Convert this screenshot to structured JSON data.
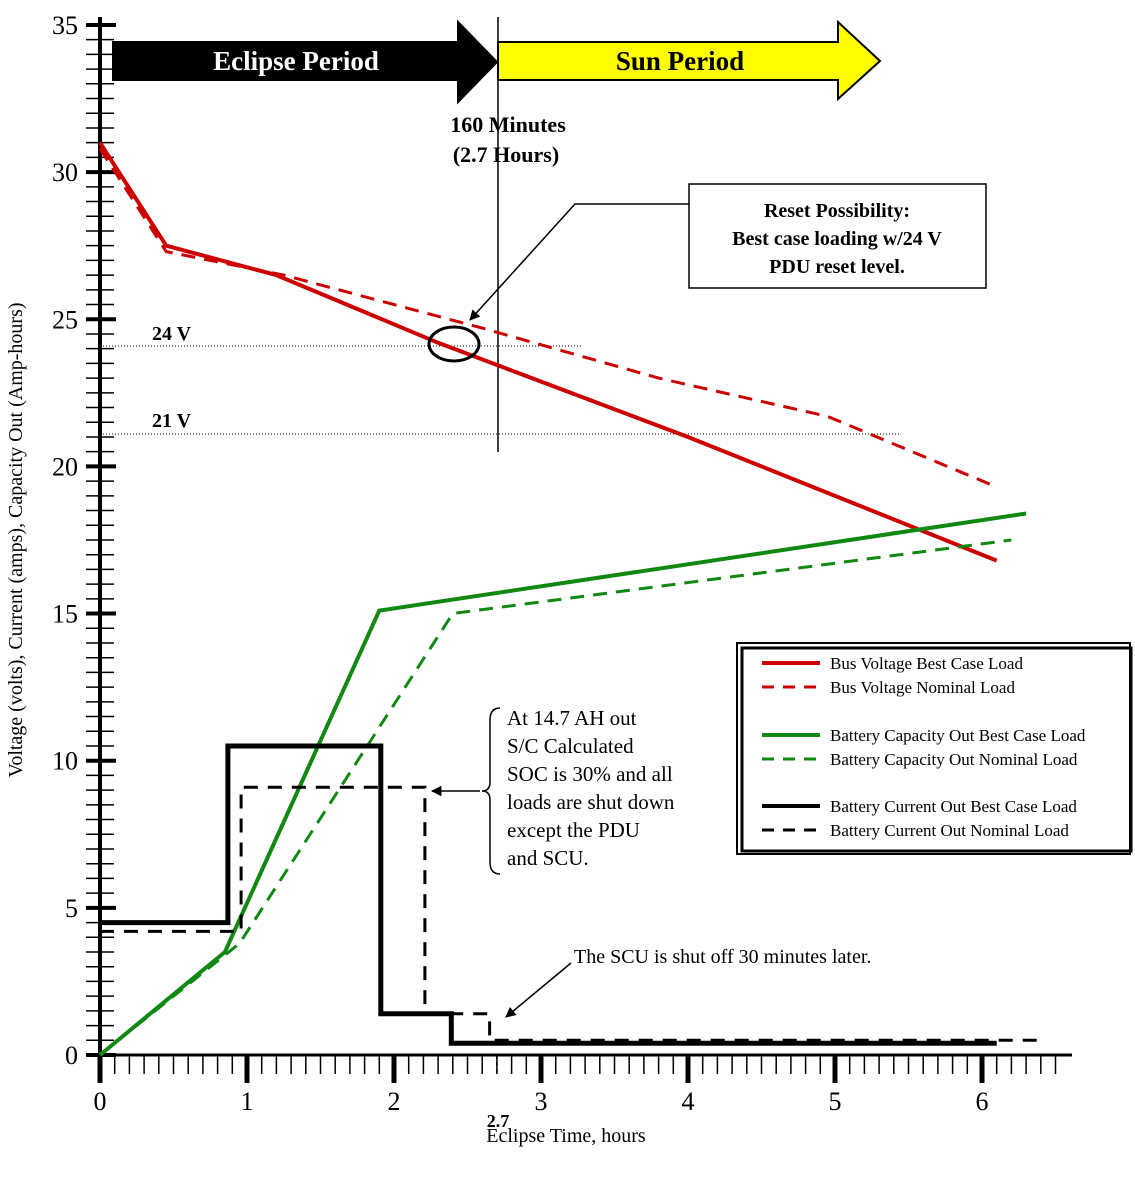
{
  "chart_data": {
    "type": "line",
    "xlabel": "Eclipse Time, hours",
    "ylabel": "Voltage (volts), Current (amps), Capacity Out (Amp-hours)",
    "xlim": [
      0,
      6.5
    ],
    "ylim": [
      0,
      35
    ],
    "x_ticks": [
      0,
      1,
      2,
      3,
      4,
      5,
      6
    ],
    "y_ticks": [
      0,
      5,
      10,
      15,
      20,
      25,
      30,
      35
    ],
    "x_marker": {
      "value": 2.7,
      "label": "2.7"
    },
    "grid": false,
    "legend_position": "right",
    "series": [
      {
        "name": "Bus Voltage Best Case Load",
        "color": "#cc0000",
        "style": "solid",
        "points": [
          [
            0,
            31
          ],
          [
            0.45,
            27.5
          ],
          [
            1.2,
            26.5
          ],
          [
            2.3,
            24.2
          ],
          [
            4,
            21
          ],
          [
            6.1,
            16.8
          ]
        ]
      },
      {
        "name": "Bus Voltage Nominal Load",
        "color": "#cc0000",
        "style": "dashed",
        "points": [
          [
            0,
            30.8
          ],
          [
            0.45,
            27.3
          ],
          [
            1.25,
            26.5
          ],
          [
            2.6,
            24.7
          ],
          [
            3.8,
            23
          ],
          [
            4.95,
            21.7
          ],
          [
            6.1,
            19.3
          ]
        ]
      },
      {
        "name": "Battery Capacity Out Best Case Load",
        "color": "#118811",
        "style": "solid",
        "points": [
          [
            0,
            0
          ],
          [
            0.85,
            3.5
          ],
          [
            1.9,
            15.1
          ],
          [
            6.3,
            18.4
          ]
        ]
      },
      {
        "name": "Battery Capacity Out Nominal Load",
        "color": "#118811",
        "style": "dashed",
        "points": [
          [
            0,
            0
          ],
          [
            0.95,
            3.8
          ],
          [
            2.4,
            15
          ],
          [
            6.2,
            17.5
          ]
        ]
      },
      {
        "name": "Battery Current Out Best Case Load",
        "color": "#000000",
        "style": "solid",
        "points": [
          [
            0,
            4.5
          ],
          [
            0.87,
            4.5
          ],
          [
            0.87,
            10.5
          ],
          [
            1.91,
            10.5
          ],
          [
            1.91,
            1.4
          ],
          [
            2.39,
            1.4
          ],
          [
            2.39,
            0.4
          ],
          [
            6.1,
            0.4
          ]
        ]
      },
      {
        "name": "Battery Current Out Nominal Load",
        "color": "#000000",
        "style": "dashed",
        "points": [
          [
            0,
            4.2
          ],
          [
            0.96,
            4.2
          ],
          [
            0.96,
            9.1
          ],
          [
            2.21,
            9.1
          ],
          [
            2.21,
            1.4
          ],
          [
            2.65,
            1.4
          ],
          [
            2.65,
            0.5
          ],
          [
            6.4,
            0.5
          ]
        ]
      }
    ],
    "reference_lines": [
      {
        "label": "24 V",
        "y": 24,
        "x_start": 0,
        "x_end": 3.27
      },
      {
        "label": "21 V",
        "y": 21,
        "x_start": 0,
        "x_end": 5.42
      }
    ],
    "periods": [
      {
        "label": "Eclipse Period",
        "x_start": 0,
        "x_end": 2.7,
        "color": "#000000",
        "text_color": "#ffffff"
      },
      {
        "label": "Sun Period",
        "x_start": 2.7,
        "x_end": 5.3,
        "color": "#ffff00",
        "text_color": "#000000"
      }
    ],
    "transition": {
      "line1": "160 Minutes",
      "line2": "(2.7 Hours)",
      "x": 2.7
    },
    "annotations": {
      "reset": {
        "lines": [
          "Reset Possibility:",
          "Best case loading w/24 V",
          "PDU reset level."
        ],
        "target": [
          2.35,
          24
        ]
      },
      "soc": {
        "lines": [
          "At 14.7 AH out",
          "S/C Calculated",
          "SOC is 30% and all",
          "loads are shut down",
          "except the PDU",
          "and SCU."
        ],
        "target": [
          2.21,
          9.1
        ]
      },
      "scu": {
        "text": "The SCU is shut off 30 minutes later.",
        "target": [
          2.75,
          1.3
        ]
      }
    }
  }
}
